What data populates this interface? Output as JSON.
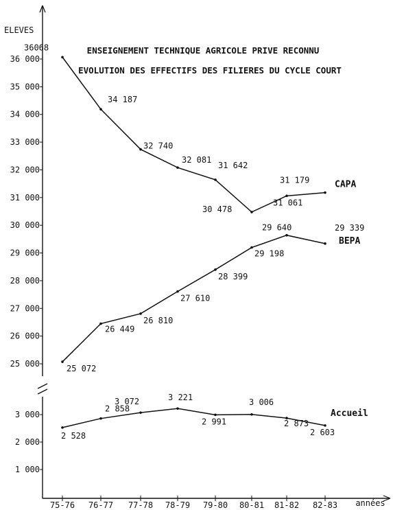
{
  "chart_data": {
    "type": "line",
    "title_lines": [
      "ENSEIGNEMENT TECHNIQUE AGRICOLE PRIVE RECONNU",
      "EVOLUTION DES EFFECTIFS DES FILIERES DU CYCLE COURT"
    ],
    "ylabel": "ELEVES",
    "xlabel": "années",
    "categories": [
      "75-76",
      "76-77",
      "77-78",
      "78-79",
      "79-80",
      "80-81",
      "81-82",
      "82-83"
    ],
    "y_ticks_upper": [
      "36 000",
      "35 000",
      "34 000",
      "33 000",
      "32 000",
      "31 000",
      "30 000",
      "29 000",
      "28 000",
      "27 000",
      "26 000",
      "25 000"
    ],
    "y_ticks_lower": [
      "3 000",
      "2 000",
      "1 000"
    ],
    "series": [
      {
        "name": "CAPA",
        "x": [
          0,
          1,
          2,
          3,
          4,
          5,
          6,
          7
        ],
        "values": [
          36068,
          34187,
          32740,
          32081,
          31642,
          30478,
          31061,
          31179
        ],
        "labels": [
          "36068",
          "34 187",
          "32 740",
          "32 081",
          "31 642",
          "30 478",
          "31 061",
          "31 179"
        ]
      },
      {
        "name": "BEPA",
        "x": [
          0,
          1,
          2,
          3,
          4,
          5,
          6,
          7
        ],
        "values": [
          25072,
          26449,
          26810,
          27610,
          28399,
          29198,
          29640,
          29339
        ],
        "labels": [
          "25 072",
          "26 449",
          "26 810",
          "27 610",
          "28 399",
          "29 198",
          "29 640",
          "29 339"
        ]
      },
      {
        "name": "Accueil",
        "x": [
          0,
          1,
          2,
          3,
          4,
          5,
          6,
          7
        ],
        "values": [
          2528,
          2858,
          3072,
          3221,
          2991,
          3006,
          2873,
          2603
        ],
        "labels": [
          "2 528",
          "2 858",
          "3 072",
          "3 221",
          "2 991",
          "3 006",
          "2 873",
          "2 603"
        ]
      }
    ],
    "axis_break": true,
    "grid": false
  }
}
